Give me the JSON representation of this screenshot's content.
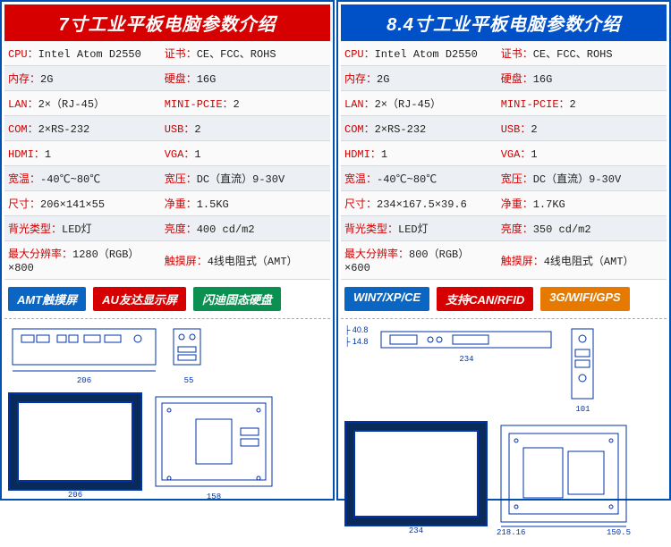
{
  "panels": [
    {
      "title": "7寸工业平板电脑参数介绍",
      "title_bg": "#d60000",
      "specs": [
        [
          "CPU：",
          "Intel Atom D2550",
          "证书：",
          "CE、FCC、ROHS"
        ],
        [
          "内存：",
          "2G",
          "硬盘：",
          "16G"
        ],
        [
          "LAN：",
          "2×（RJ-45）",
          "MINI-PCIE：",
          "2"
        ],
        [
          "COM：",
          "2×RS-232",
          "USB：",
          "2"
        ],
        [
          "HDMI：",
          "1",
          "VGA：",
          "1"
        ],
        [
          "宽温：",
          "-40℃~80℃",
          "宽压：",
          "DC（直流）9-30V"
        ],
        [
          "尺寸：",
          "206×141×55",
          "净重：",
          "1.5KG"
        ],
        [
          "背光类型：",
          "LED灯",
          "亮度：",
          "400 cd/m2"
        ],
        [
          "最大分辨率：",
          "1280（RGB）×800",
          "触摸屏：",
          "4线电阻式（AMT）"
        ]
      ],
      "badges": [
        {
          "text": "AMT触摸屏",
          "bg": "#0a66c2"
        },
        {
          "text": "AU友达显示屏",
          "bg": "#d60000"
        },
        {
          "text": "闪迪固态硬盘",
          "bg": "#0a9050"
        }
      ],
      "diagram": {
        "top_w": "206",
        "top_h": "141",
        "side_small": "55",
        "screen_w": "206",
        "screen_h": "141",
        "back_w": "158",
        "back_h": "120"
      }
    },
    {
      "title": "8.4寸工业平板电脑参数介绍",
      "title_bg": "#0051c8",
      "specs": [
        [
          "CPU：",
          "Intel Atom D2550",
          "证书：",
          "CE、FCC、ROHS"
        ],
        [
          "内存：",
          "2G",
          "硬盘：",
          "16G"
        ],
        [
          "LAN：",
          "2×（RJ-45）",
          "MINI-PCIE：",
          "2"
        ],
        [
          "COM：",
          "2×RS-232",
          "USB：",
          "2"
        ],
        [
          "HDMI：",
          "1",
          "VGA：",
          "1"
        ],
        [
          "宽温：",
          "-40℃~80℃",
          "宽压：",
          "DC（直流）9-30V"
        ],
        [
          "尺寸：",
          "234×167.5×39.6",
          "净重：",
          "1.7KG"
        ],
        [
          "背光类型：",
          "LED灯",
          "亮度：",
          "350 cd/m2"
        ],
        [
          "最大分辨率：",
          "800（RGB）×600",
          "触摸屏：",
          "4线电阻式（AMT）"
        ]
      ],
      "badges": [
        {
          "text": "WIN7/XP/CE",
          "bg": "#0a66c2"
        },
        {
          "text": "支持CAN/RFID",
          "bg": "#d60000"
        },
        {
          "text": "3G/WIFI/GPS",
          "bg": "#e67a00"
        }
      ],
      "diagram": {
        "top_w": "234",
        "top_h": "167.5",
        "side_dims": [
          "40.8",
          "14.8"
        ],
        "side_h": "101",
        "side_th": "75",
        "screen_w": "218.16",
        "screen_h": "150.5",
        "back_w": "234",
        "back_h": "167.5"
      }
    }
  ],
  "colors": {
    "label": "#d00000",
    "value": "#222222",
    "row_odd": "#fafafa",
    "row_even": "#eceff3",
    "tech_stroke": "#0033aa"
  }
}
